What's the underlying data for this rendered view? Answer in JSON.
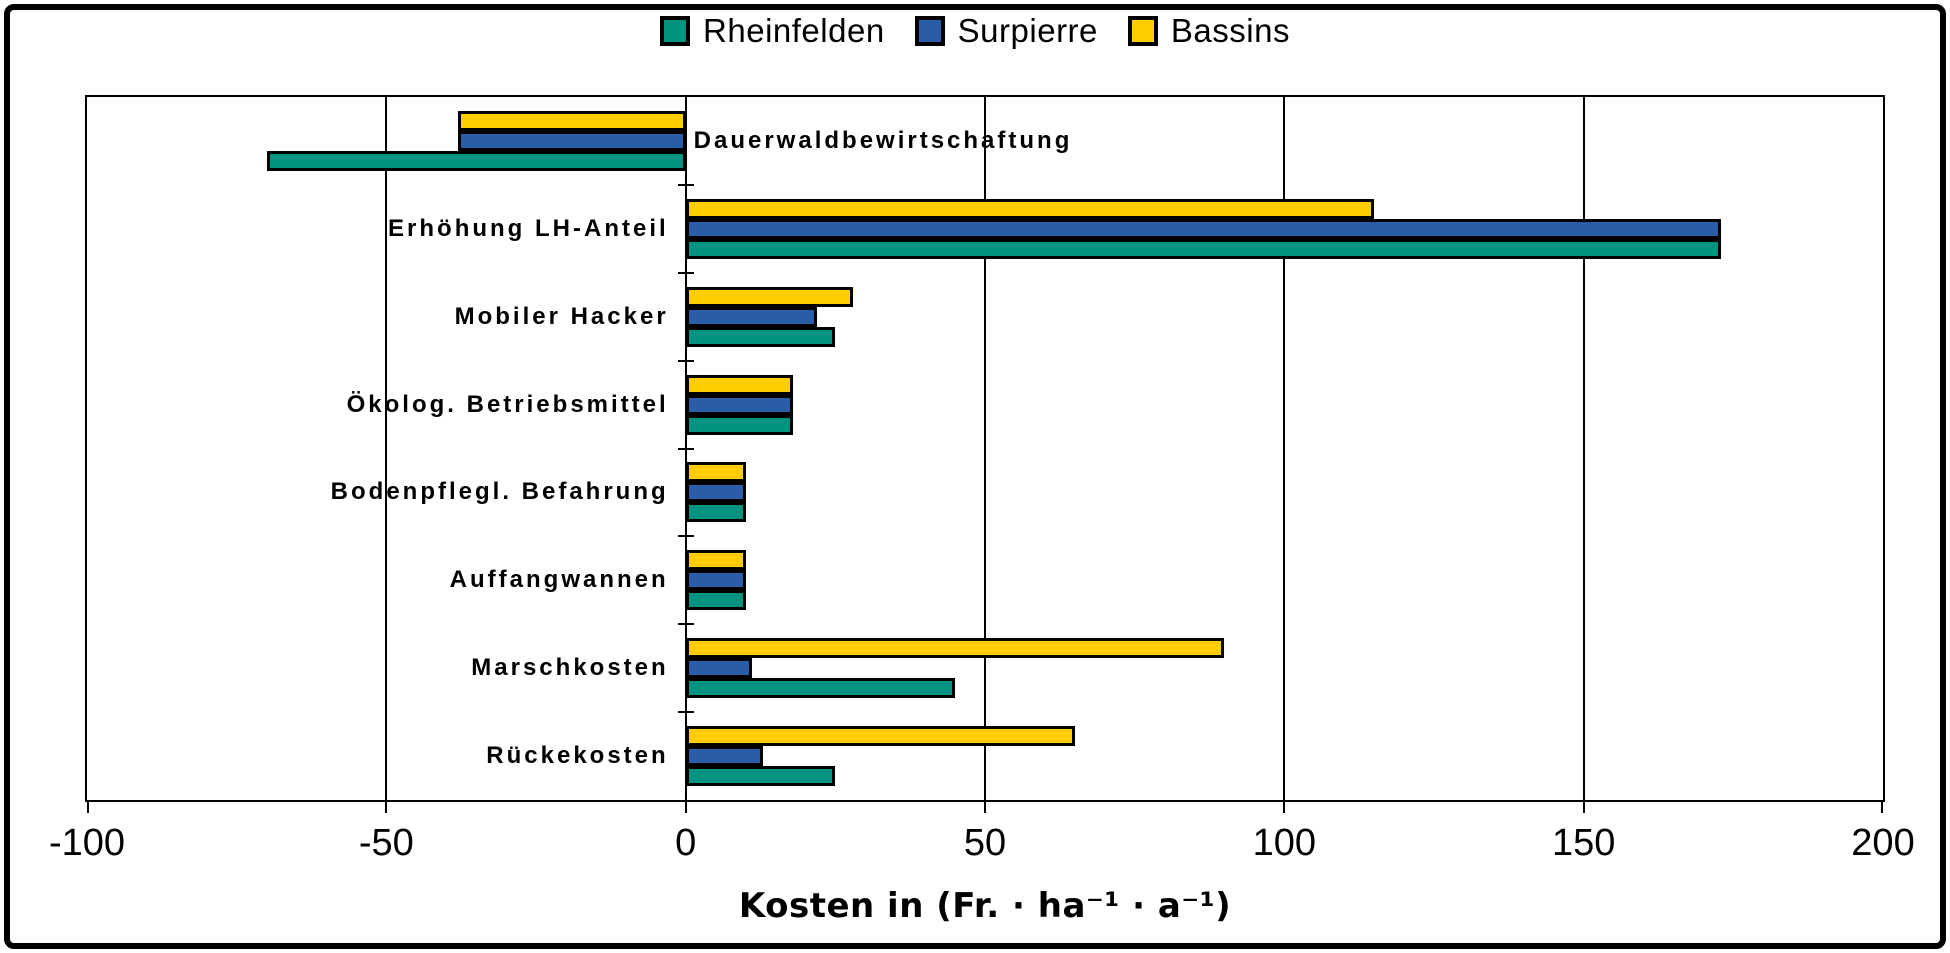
{
  "colors": {
    "background": "#ffffff",
    "frame": "#000000",
    "axis": "#000000",
    "rheinfelden": "#009480",
    "surpierre": "#2B5CA8",
    "bassins": "#FFCD00"
  },
  "legend": {
    "items": [
      {
        "label": "Rheinfelden",
        "color": "#009480"
      },
      {
        "label": "Surpierre",
        "color": "#2B5CA8"
      },
      {
        "label": "Bassins",
        "color": "#FFCD00"
      }
    ]
  },
  "chart_data": {
    "type": "bar",
    "orientation": "horizontal",
    "title": "",
    "xlabel": "Kosten in (Fr. · ha⁻¹ · a⁻¹)",
    "xlim": [
      -100,
      200
    ],
    "xticks": [
      -100,
      -50,
      0,
      50,
      100,
      150,
      200
    ],
    "grid": true,
    "legend_position": "top",
    "row_order_top_to_bottom": [
      "Bassins",
      "Surpierre",
      "Rheinfelden"
    ],
    "categories": [
      "Dauerwaldbewirtschaftung",
      "Erhöhung LH-Anteil",
      "Mobiler Hacker",
      "Ökolog. Betriebsmittel",
      "Bodenpflegl. Befahrung",
      "Auffangwannen",
      "Marschkosten",
      "Rückekosten"
    ],
    "series": [
      {
        "name": "Rheinfelden",
        "color": "#009480",
        "values": [
          -70,
          173,
          25,
          18,
          10,
          10,
          45,
          25
        ]
      },
      {
        "name": "Surpierre",
        "color": "#2B5CA8",
        "values": [
          -38,
          173,
          22,
          18,
          10,
          10,
          11,
          13
        ]
      },
      {
        "name": "Bassins",
        "color": "#FFCD00",
        "values": [
          -38,
          115,
          28,
          18,
          10,
          10,
          90,
          65
        ]
      }
    ]
  }
}
